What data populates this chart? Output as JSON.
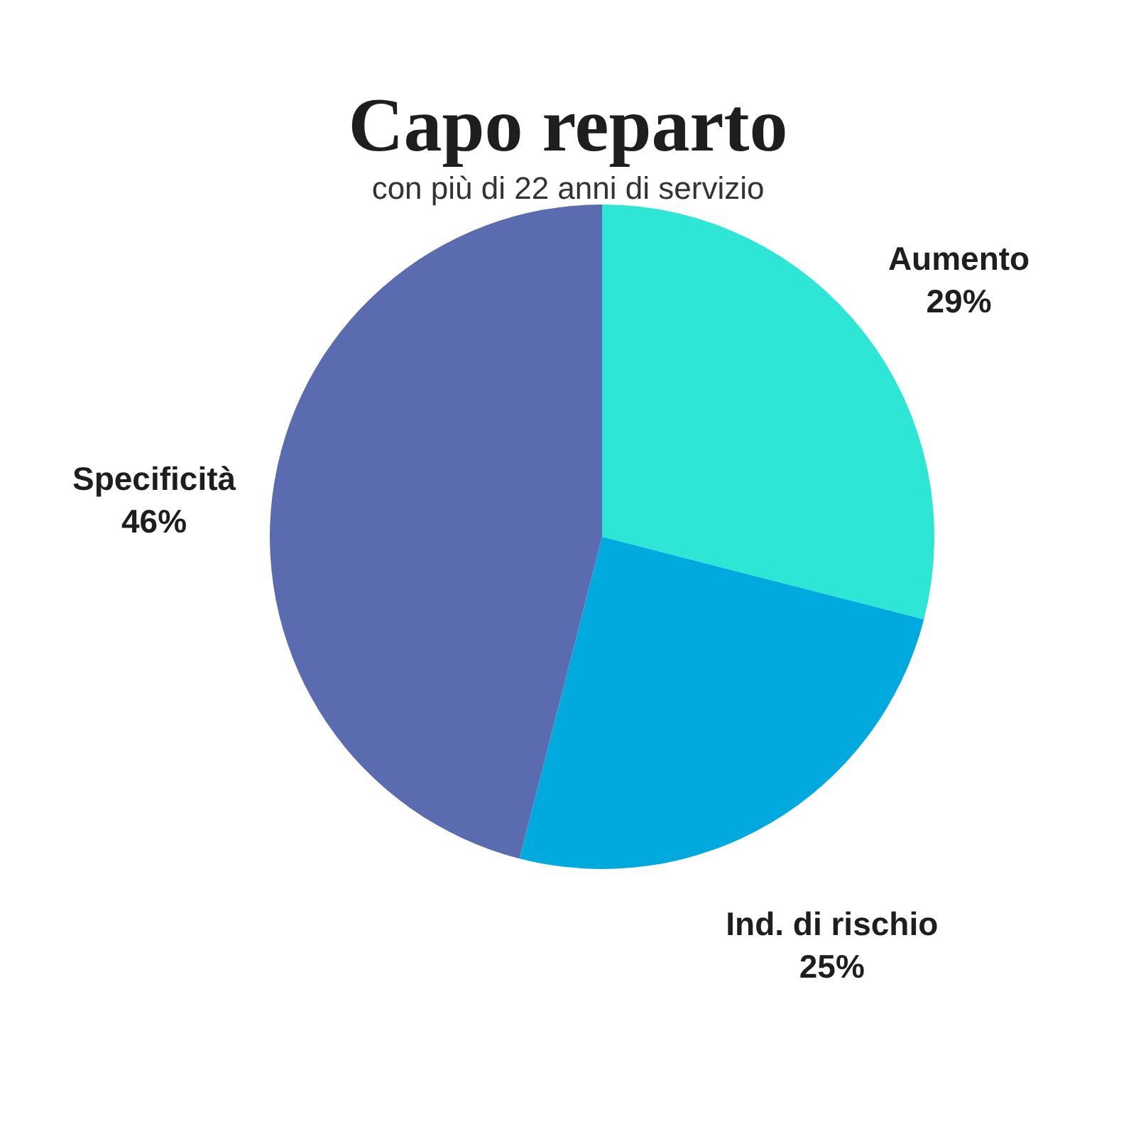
{
  "chart_data": {
    "type": "pie",
    "title": "Capo reparto",
    "subtitle": "con più di 22 anni di servizio",
    "categories": [
      "Aumento",
      "Ind. di rischio",
      "Specificità"
    ],
    "values": [
      29,
      25,
      46
    ],
    "colors": [
      "#2de6d6",
      "#00aadf",
      "#5a6bb0"
    ],
    "value_labels": [
      "29%",
      "25%",
      "46%"
    ],
    "legend": false
  }
}
